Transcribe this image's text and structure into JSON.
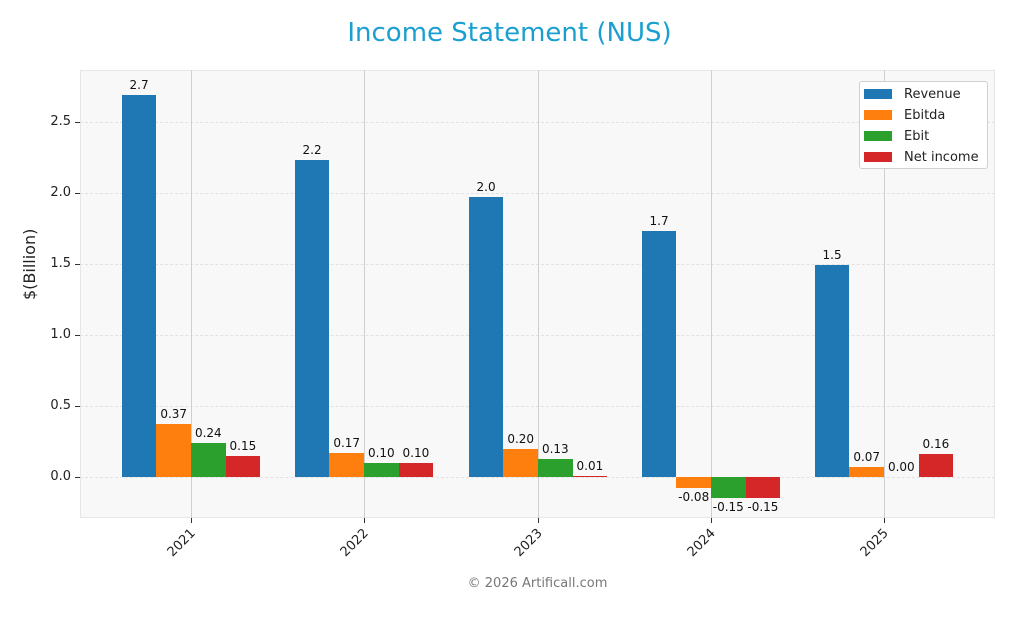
{
  "title": "Income Statement (NUS)",
  "footer": "© 2026 Artificall.com",
  "colors": {
    "title": "#1a9fd0",
    "revenue": "#1f77b4",
    "ebitda": "#ff7f0e",
    "ebit": "#2ca02c",
    "net_income": "#d62728"
  },
  "chart_data": {
    "type": "bar",
    "title": "Income Statement (NUS)",
    "xlabel": "",
    "ylabel": "$(Billion)",
    "categories": [
      "2021",
      "2022",
      "2023",
      "2024",
      "2025"
    ],
    "series": [
      {
        "name": "Revenue",
        "values": [
          2.7,
          2.2,
          2.0,
          1.7,
          1.5
        ],
        "plot_values": [
          2.69,
          2.23,
          1.97,
          1.73,
          1.49
        ],
        "labels": [
          "2.7",
          "2.2",
          "2.0",
          "1.7",
          "1.5"
        ]
      },
      {
        "name": "Ebitda",
        "values": [
          0.37,
          0.17,
          0.2,
          -0.08,
          0.07
        ],
        "labels": [
          "0.37",
          "0.17",
          "0.20",
          "-0.08",
          "0.07"
        ]
      },
      {
        "name": "Ebit",
        "values": [
          0.24,
          0.1,
          0.13,
          -0.15,
          0.0
        ],
        "labels": [
          "0.24",
          "0.10",
          "0.13",
          "-0.15",
          "0.00"
        ]
      },
      {
        "name": "Net income",
        "values": [
          0.15,
          0.1,
          0.01,
          -0.15,
          0.16
        ],
        "labels": [
          "0.15",
          "0.10",
          "0.01",
          "-0.15",
          "0.16"
        ]
      }
    ],
    "yticks": [
      "0.0",
      "0.5",
      "1.0",
      "1.5",
      "2.0",
      "2.5"
    ],
    "ylim": [
      -0.29,
      2.87
    ],
    "grid": true,
    "legend_position": "upper right"
  }
}
